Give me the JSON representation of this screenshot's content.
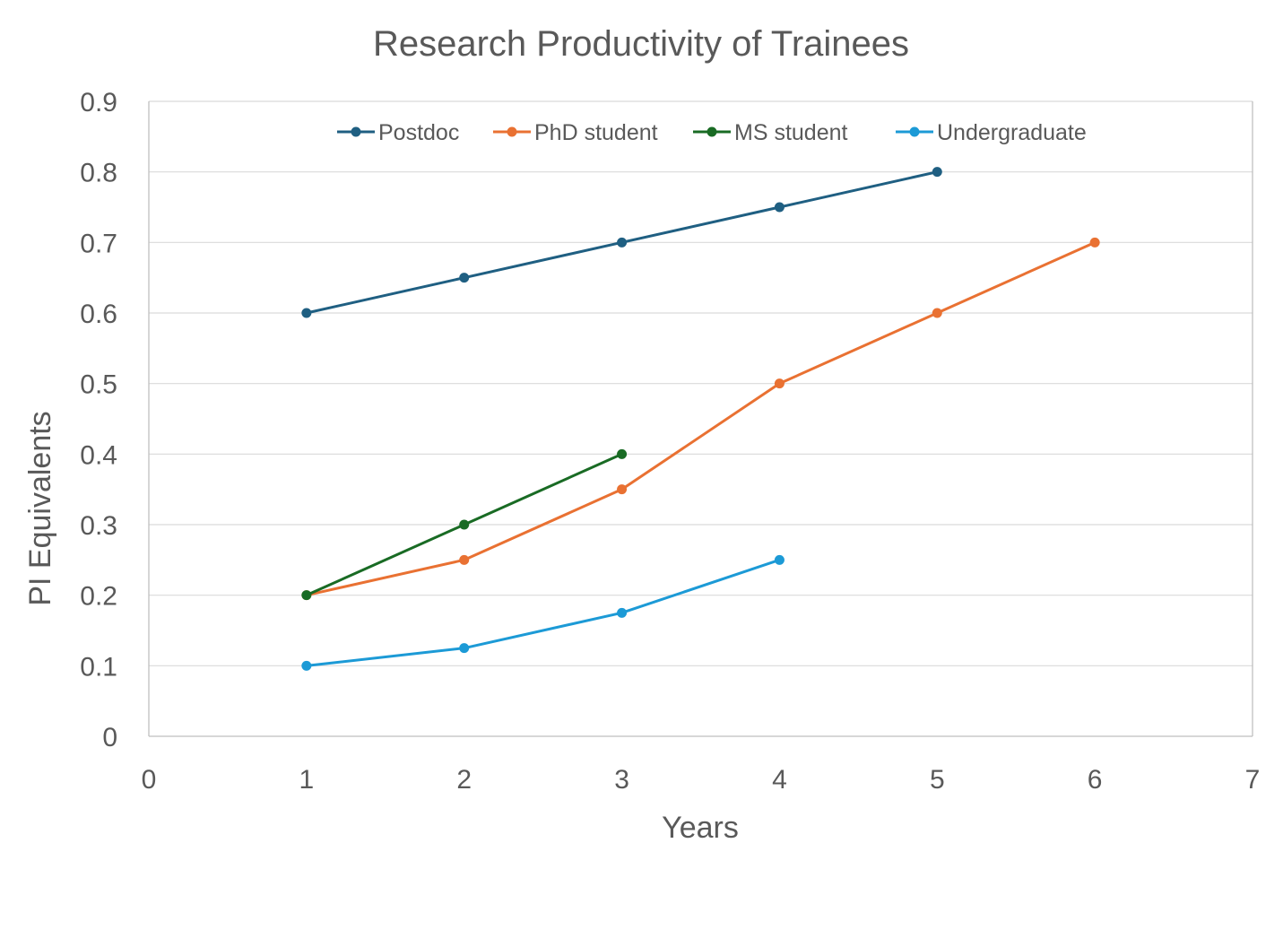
{
  "chart_data": {
    "type": "line",
    "title": "Research Productivity of Trainees",
    "xlabel": "Years",
    "ylabel": "PI Equivalents",
    "xlim": [
      0,
      7
    ],
    "ylim": [
      0,
      0.9
    ],
    "xticks": [
      "0",
      "1",
      "2",
      "3",
      "4",
      "5",
      "6",
      "7"
    ],
    "yticks": [
      "0",
      "0.1",
      "0.2",
      "0.3",
      "0.4",
      "0.5",
      "0.6",
      "0.7",
      "0.8",
      "0.9"
    ],
    "grid": "horizontal",
    "legend_position": "top",
    "series": [
      {
        "name": "Postdoc",
        "color": "#1f5f82",
        "x": [
          1,
          2,
          3,
          4,
          5
        ],
        "y": [
          0.6,
          0.65,
          0.7,
          0.75,
          0.8
        ]
      },
      {
        "name": "PhD student",
        "color": "#e97132",
        "x": [
          1,
          2,
          3,
          4,
          5,
          6
        ],
        "y": [
          0.2,
          0.25,
          0.35,
          0.5,
          0.6,
          0.7
        ]
      },
      {
        "name": "MS student",
        "color": "#196b24",
        "x": [
          1,
          2,
          3
        ],
        "y": [
          0.2,
          0.3,
          0.4
        ]
      },
      {
        "name": "Undergraduate",
        "color": "#1c9ad6",
        "x": [
          1,
          2,
          3,
          4
        ],
        "y": [
          0.1,
          0.125,
          0.175,
          0.25
        ]
      }
    ]
  }
}
